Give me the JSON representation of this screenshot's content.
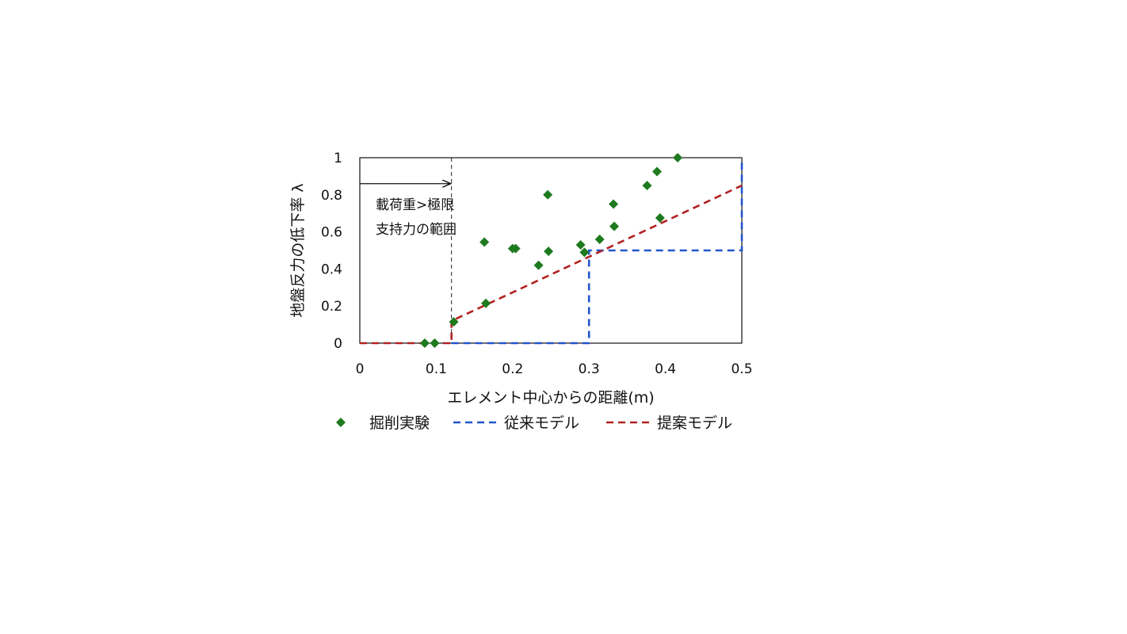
{
  "chart_data": {
    "type": "scatter",
    "xlabel": "エレメント中心からの距離(m)",
    "ylabel": "地盤反力の低下率 λ",
    "xlim": [
      0,
      0.5
    ],
    "ylim": [
      0,
      1
    ],
    "xticks": [
      "0",
      "0.1",
      "0.2",
      "0.3",
      "0.4",
      "0.5"
    ],
    "yticks": [
      "0",
      "0.2",
      "0.4",
      "0.6",
      "0.8",
      "1"
    ],
    "grid": false,
    "legend_position": "bottom",
    "annotation": {
      "lines": [
        "載荷重>極限",
        "支持力の範囲"
      ],
      "boundary_x": 0.12,
      "arrow_y": 0.86
    },
    "series": [
      {
        "name": "掘削実験",
        "kind": "scatter",
        "marker": "diamond",
        "color": "#1e7a1e",
        "points": [
          [
            0.085,
            0.0
          ],
          [
            0.098,
            0.0
          ],
          [
            0.123,
            0.115
          ],
          [
            0.163,
            0.545
          ],
          [
            0.165,
            0.215
          ],
          [
            0.2,
            0.51
          ],
          [
            0.204,
            0.51
          ],
          [
            0.234,
            0.42
          ],
          [
            0.246,
            0.8
          ],
          [
            0.247,
            0.495
          ],
          [
            0.289,
            0.53
          ],
          [
            0.294,
            0.49
          ],
          [
            0.314,
            0.56
          ],
          [
            0.332,
            0.75
          ],
          [
            0.333,
            0.63
          ],
          [
            0.376,
            0.85
          ],
          [
            0.389,
            0.925
          ],
          [
            0.393,
            0.675
          ],
          [
            0.416,
            1.0
          ]
        ]
      },
      {
        "name": "従来モデル",
        "kind": "line",
        "dash": "dash",
        "color": "#2255cc",
        "points": [
          [
            0.12,
            0
          ],
          [
            0.3,
            0
          ],
          [
            0.3,
            0.5
          ],
          [
            0.5,
            0.5
          ],
          [
            0.5,
            1.0
          ]
        ]
      },
      {
        "name": "提案モデル",
        "kind": "line",
        "dash": "dash",
        "color": "#b22222",
        "points": [
          [
            0,
            0
          ],
          [
            0.12,
            0
          ],
          [
            0.12,
            0.12
          ],
          [
            0.5,
            0.85
          ]
        ]
      }
    ]
  }
}
